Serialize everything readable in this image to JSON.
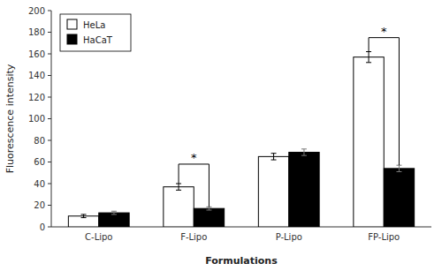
{
  "chart_data": {
    "type": "bar",
    "categories": [
      "C-Lipo",
      "F-Lipo",
      "P-Lipo",
      "FP-Lipo"
    ],
    "series": [
      {
        "name": "HeLa",
        "color": "white",
        "values": [
          10,
          37,
          65,
          157
        ],
        "errors": [
          1.5,
          3,
          3,
          5
        ]
      },
      {
        "name": "HaCaT",
        "color": "black",
        "values": [
          13,
          17,
          69,
          54
        ],
        "errors": [
          1.5,
          1.5,
          3,
          3
        ]
      }
    ],
    "xlabel": "Formulations",
    "ylabel": "Fluorescence intensity",
    "ylim": [
      0,
      200
    ],
    "yticks": [
      0,
      20,
      40,
      60,
      80,
      100,
      120,
      140,
      160,
      180,
      200
    ],
    "grid": false,
    "legend": "upper left",
    "significance": [
      {
        "category": "F-Lipo",
        "y": 58,
        "label": "*"
      },
      {
        "category": "FP-Lipo",
        "y": 175,
        "label": "*"
      }
    ]
  }
}
